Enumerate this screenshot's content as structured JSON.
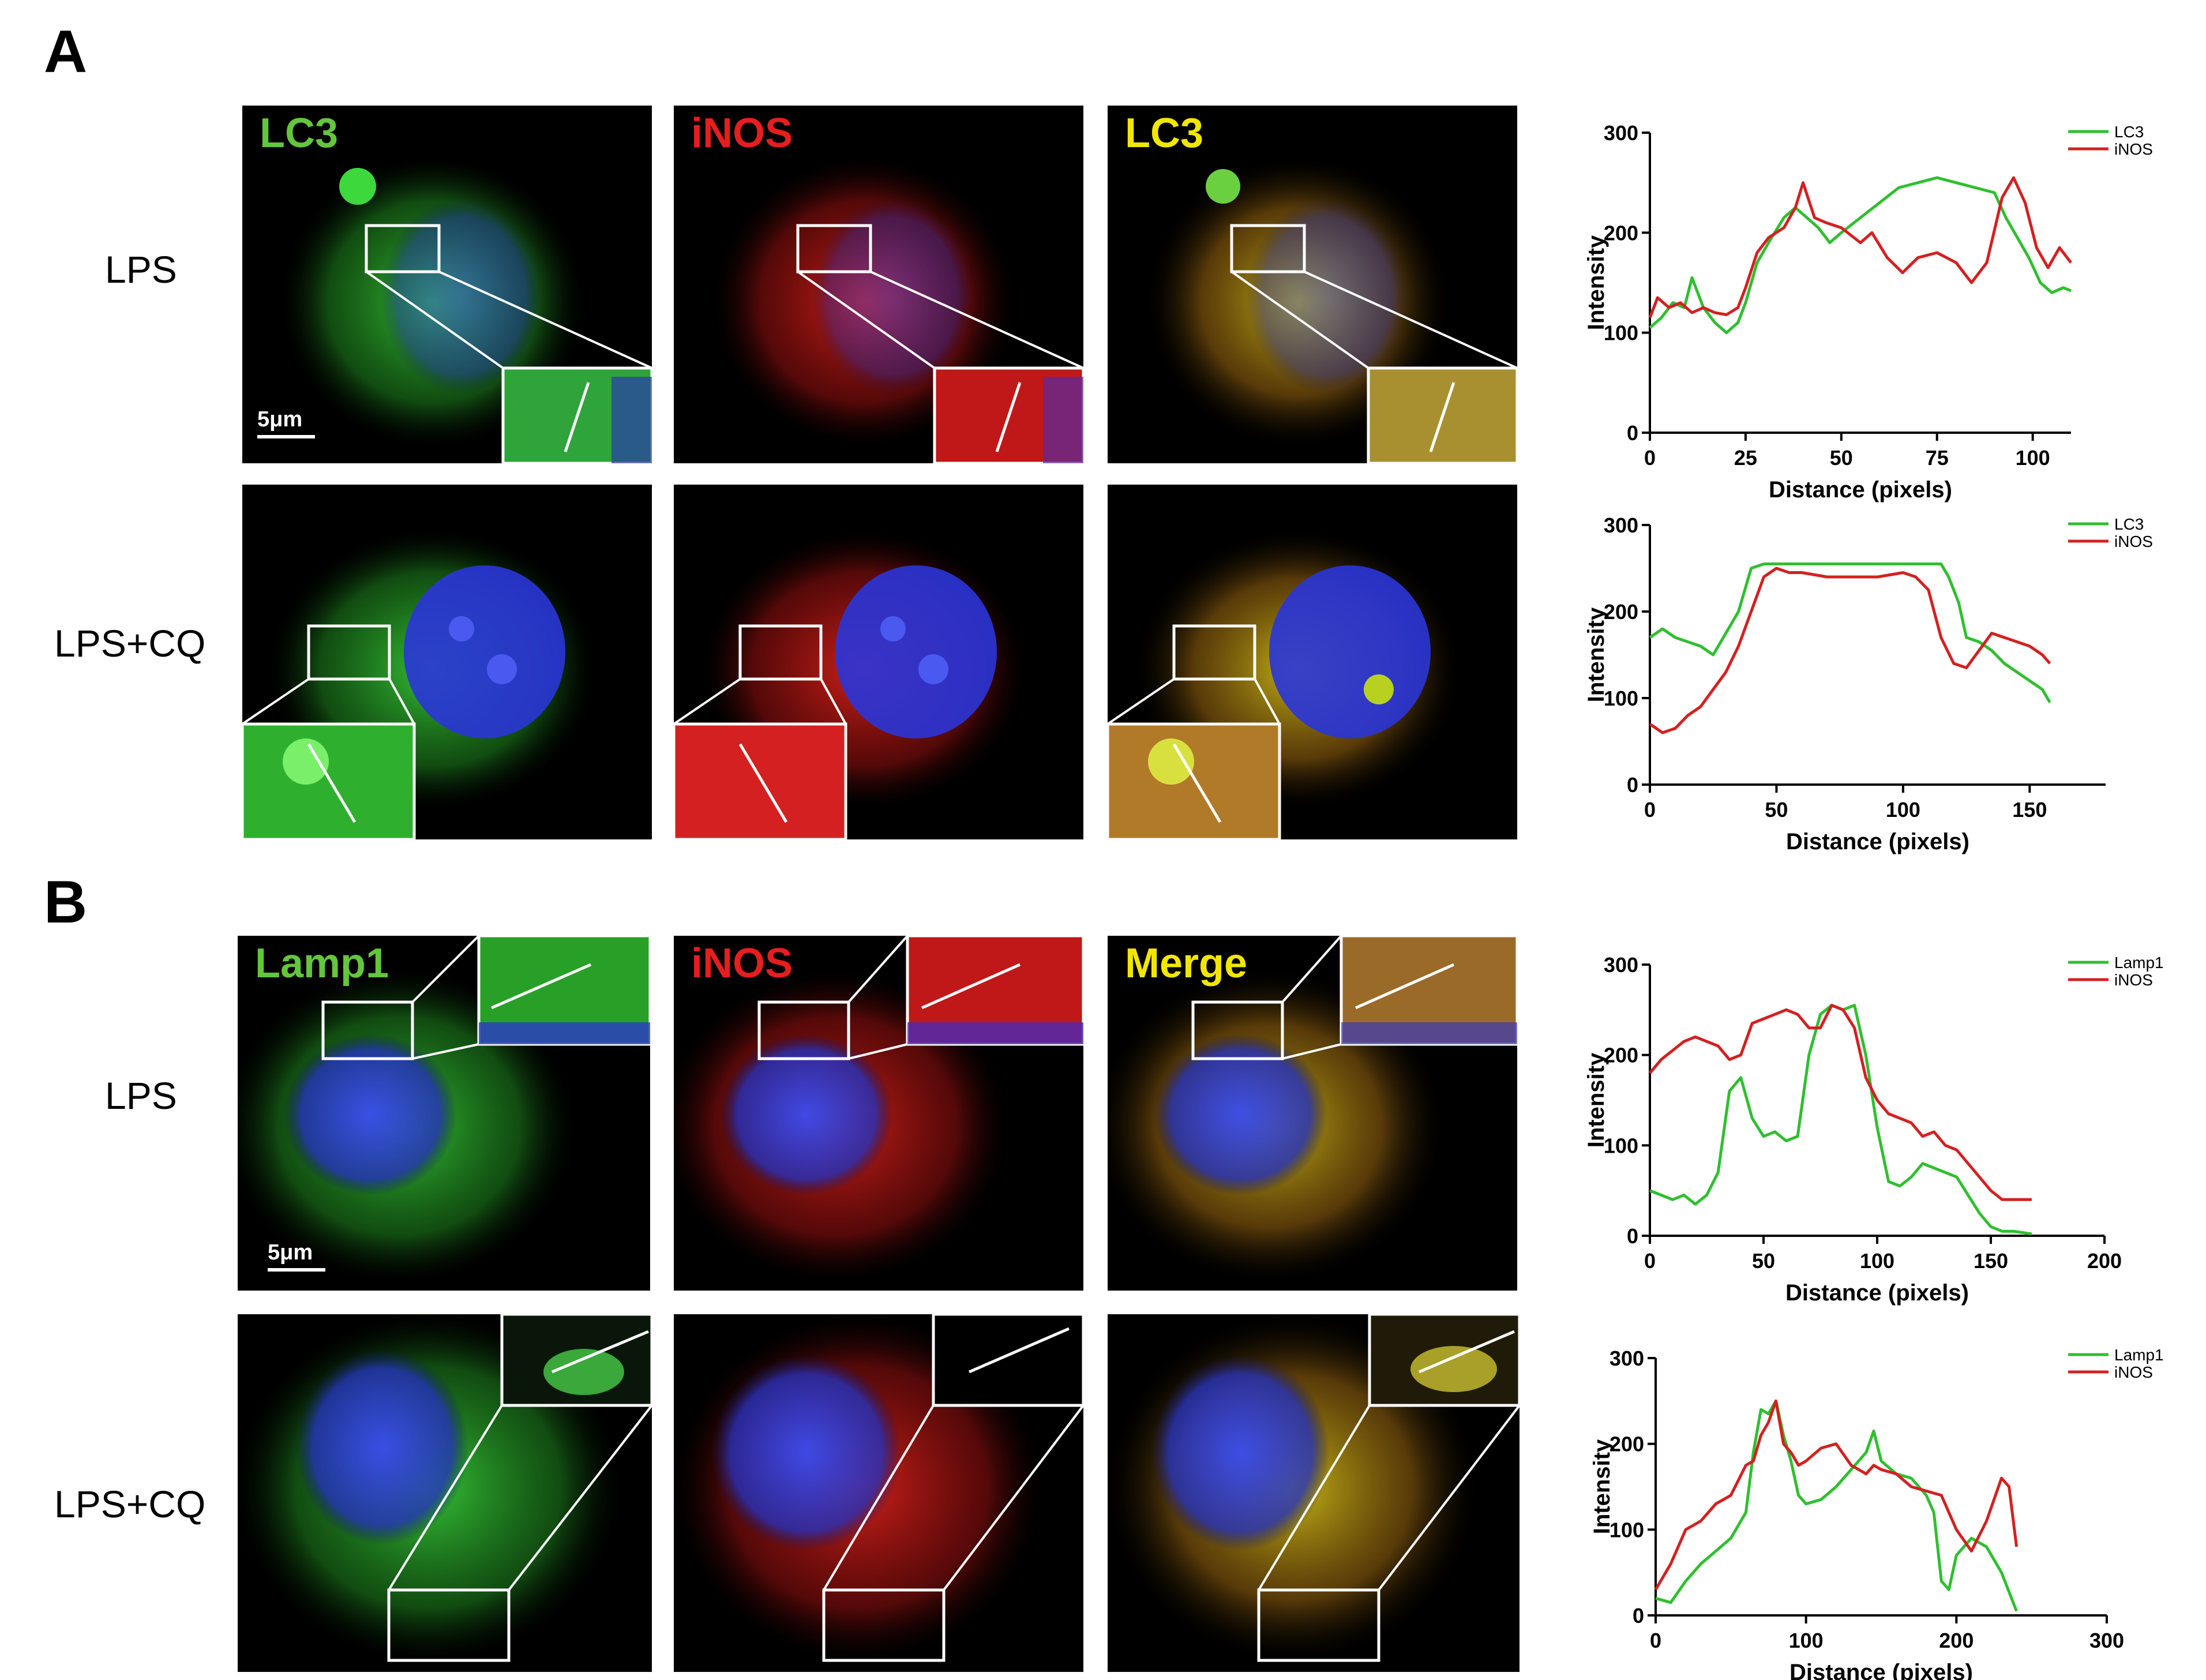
{
  "panels": {
    "A": {
      "letter": "A",
      "rows": [
        {
          "label": "LPS",
          "channels": [
            "LC3",
            "iNOS",
            "LC3"
          ],
          "scale_bar": "5μm"
        },
        {
          "label": "LPS+CQ",
          "channels": [
            "",
            "",
            ""
          ],
          "scale_bar": ""
        }
      ]
    },
    "B": {
      "letter": "B",
      "rows": [
        {
          "label": "LPS",
          "channels": [
            "Lamp1",
            "iNOS",
            "Merge"
          ],
          "scale_bar": "5μm"
        },
        {
          "label": "LPS+CQ",
          "channels": [
            "",
            "",
            ""
          ],
          "scale_bar": ""
        }
      ]
    }
  },
  "colors": {
    "green": "#3cd83c",
    "red": "#e01c1c",
    "yellow": "#f2e600",
    "blue": "#2a35d8"
  },
  "chart_data": [
    {
      "type": "line",
      "xlabel": "Distance (pixels)",
      "ylabel": "Intensity",
      "xlim": [
        0,
        110
      ],
      "ylim": [
        0,
        300
      ],
      "xticks": [
        0,
        25,
        50,
        75,
        100
      ],
      "yticks": [
        0,
        100,
        200,
        300
      ],
      "legend_position": "top-right",
      "series": [
        {
          "name": "LC3",
          "color": "#2fbf2f",
          "x": [
            0,
            3,
            6,
            9,
            11,
            14,
            17,
            20,
            23,
            25,
            28,
            31,
            35,
            38,
            41,
            44,
            47,
            50,
            55,
            60,
            65,
            70,
            75,
            80,
            85,
            90,
            93,
            96,
            99,
            102,
            105,
            108,
            110
          ],
          "y": [
            105,
            115,
            130,
            125,
            155,
            125,
            110,
            100,
            110,
            130,
            170,
            190,
            215,
            225,
            215,
            205,
            190,
            200,
            215,
            230,
            245,
            250,
            255,
            250,
            245,
            240,
            215,
            195,
            175,
            150,
            140,
            145,
            142
          ]
        },
        {
          "name": "iNOS",
          "color": "#d42020",
          "x": [
            0,
            2,
            5,
            8,
            11,
            14,
            17,
            20,
            23,
            25,
            28,
            31,
            35,
            38,
            40,
            43,
            46,
            50,
            55,
            58,
            62,
            66,
            70,
            75,
            80,
            84,
            88,
            92,
            95,
            98,
            101,
            104,
            107,
            110
          ],
          "y": [
            115,
            135,
            125,
            130,
            120,
            125,
            120,
            118,
            125,
            145,
            180,
            195,
            205,
            225,
            250,
            215,
            210,
            205,
            190,
            200,
            175,
            160,
            175,
            180,
            170,
            150,
            170,
            235,
            255,
            230,
            185,
            165,
            185,
            170
          ]
        }
      ]
    },
    {
      "type": "line",
      "xlabel": "Distance (pixels)",
      "ylabel": "Intensity",
      "xlim": [
        0,
        180
      ],
      "ylim": [
        0,
        300
      ],
      "xticks": [
        0,
        50,
        100,
        150
      ],
      "yticks": [
        0,
        100,
        200,
        300
      ],
      "legend_position": "top-right",
      "series": [
        {
          "name": "LC3",
          "color": "#2fbf2f",
          "x": [
            0,
            5,
            10,
            15,
            20,
            25,
            30,
            35,
            40,
            45,
            50,
            60,
            70,
            80,
            90,
            100,
            110,
            115,
            118,
            122,
            125,
            130,
            135,
            140,
            145,
            150,
            155,
            158
          ],
          "y": [
            170,
            180,
            170,
            165,
            160,
            150,
            175,
            200,
            250,
            255,
            255,
            255,
            255,
            255,
            255,
            255,
            255,
            255,
            240,
            210,
            170,
            165,
            155,
            140,
            130,
            120,
            110,
            95
          ]
        },
        {
          "name": "iNOS",
          "color": "#d42020",
          "x": [
            0,
            5,
            10,
            15,
            20,
            25,
            30,
            35,
            40,
            45,
            50,
            55,
            60,
            70,
            80,
            90,
            100,
            105,
            110,
            115,
            120,
            125,
            130,
            135,
            140,
            145,
            150,
            155,
            158
          ],
          "y": [
            70,
            60,
            65,
            80,
            90,
            110,
            130,
            160,
            200,
            240,
            250,
            245,
            245,
            240,
            240,
            240,
            245,
            240,
            225,
            170,
            140,
            135,
            155,
            175,
            170,
            165,
            160,
            150,
            140
          ]
        }
      ]
    },
    {
      "type": "line",
      "xlabel": "Distance (pixels)",
      "ylabel": "Intensity",
      "xlim": [
        0,
        200
      ],
      "ylim": [
        0,
        300
      ],
      "xticks": [
        0,
        50,
        100,
        150,
        200
      ],
      "yticks": [
        0,
        100,
        200,
        300
      ],
      "legend_position": "top-right",
      "series": [
        {
          "name": "Lamp1",
          "color": "#2fbf2f",
          "x": [
            0,
            5,
            10,
            15,
            20,
            25,
            30,
            35,
            40,
            45,
            50,
            55,
            60,
            65,
            70,
            75,
            80,
            85,
            90,
            95,
            100,
            105,
            110,
            115,
            120,
            125,
            130,
            135,
            140,
            145,
            150,
            155,
            160,
            168
          ],
          "y": [
            50,
            45,
            40,
            45,
            35,
            45,
            70,
            160,
            175,
            130,
            110,
            115,
            105,
            110,
            200,
            245,
            255,
            250,
            255,
            200,
            120,
            60,
            55,
            65,
            80,
            75,
            70,
            65,
            45,
            25,
            10,
            5,
            5,
            2
          ]
        },
        {
          "name": "iNOS",
          "color": "#d42020",
          "x": [
            0,
            5,
            10,
            15,
            20,
            25,
            30,
            35,
            40,
            45,
            50,
            55,
            60,
            65,
            70,
            75,
            80,
            85,
            90,
            95,
            100,
            105,
            110,
            115,
            120,
            125,
            130,
            135,
            140,
            145,
            150,
            155,
            160,
            168
          ],
          "y": [
            180,
            195,
            205,
            215,
            220,
            215,
            210,
            195,
            200,
            235,
            240,
            245,
            250,
            245,
            230,
            230,
            255,
            250,
            230,
            175,
            150,
            135,
            130,
            125,
            110,
            115,
            100,
            95,
            80,
            65,
            50,
            40,
            40,
            40
          ]
        }
      ]
    },
    {
      "type": "line",
      "xlabel": "Distance (pixels)",
      "ylabel": "Intensity",
      "xlim": [
        0,
        300
      ],
      "ylim": [
        0,
        300
      ],
      "xticks": [
        0,
        100,
        200,
        300
      ],
      "yticks": [
        0,
        100,
        200,
        300
      ],
      "legend_position": "top-right",
      "series": [
        {
          "name": "Lamp1",
          "color": "#2fbf2f",
          "x": [
            0,
            10,
            20,
            30,
            40,
            50,
            60,
            65,
            70,
            75,
            80,
            85,
            90,
            95,
            100,
            110,
            120,
            130,
            140,
            145,
            150,
            160,
            170,
            180,
            185,
            190,
            195,
            200,
            210,
            220,
            230,
            240
          ],
          "y": [
            20,
            15,
            40,
            60,
            75,
            90,
            120,
            190,
            240,
            235,
            250,
            210,
            180,
            140,
            130,
            135,
            150,
            170,
            190,
            215,
            180,
            165,
            160,
            140,
            120,
            40,
            30,
            70,
            90,
            80,
            50,
            5
          ]
        },
        {
          "name": "iNOS",
          "color": "#d42020",
          "x": [
            0,
            10,
            20,
            30,
            40,
            50,
            60,
            65,
            70,
            75,
            80,
            85,
            90,
            95,
            100,
            110,
            120,
            130,
            140,
            145,
            150,
            160,
            170,
            180,
            190,
            200,
            210,
            220,
            225,
            230,
            235,
            240
          ],
          "y": [
            30,
            60,
            100,
            110,
            130,
            140,
            175,
            180,
            210,
            225,
            250,
            200,
            190,
            175,
            180,
            195,
            200,
            175,
            165,
            175,
            170,
            165,
            150,
            145,
            140,
            100,
            75,
            110,
            135,
            160,
            150,
            80
          ]
        }
      ]
    }
  ]
}
